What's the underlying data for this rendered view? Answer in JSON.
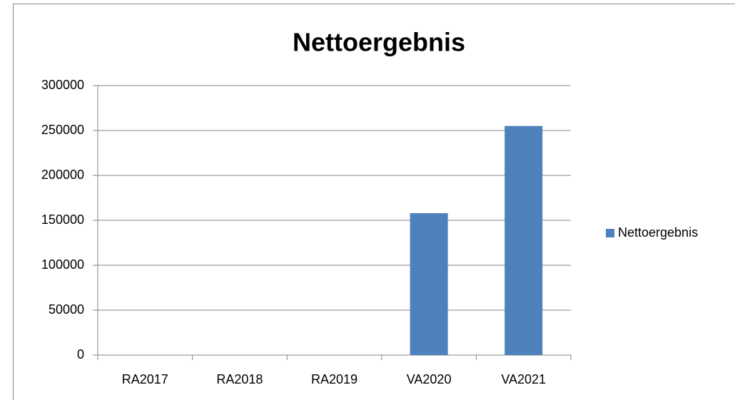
{
  "chart_data": {
    "type": "bar",
    "title": "Nettoergebnis",
    "categories": [
      "RA2017",
      "RA2018",
      "RA2019",
      "VA2020",
      "VA2021"
    ],
    "series": [
      {
        "name": "Nettoergebnis",
        "color": "#4f81bd",
        "values": [
          0,
          0,
          0,
          158000,
          255000
        ]
      }
    ],
    "ylim": [
      0,
      300000
    ],
    "yticks": [
      0,
      50000,
      100000,
      150000,
      200000,
      250000,
      300000
    ],
    "grid": true,
    "legend": "right"
  }
}
